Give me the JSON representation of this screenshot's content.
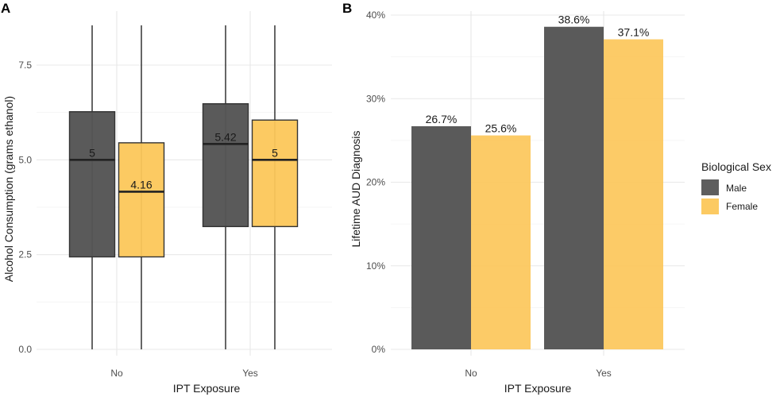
{
  "colors": {
    "male": "#555555",
    "female": "#fcc75a",
    "outline": "#333333"
  },
  "legend": {
    "title": "Biological Sex",
    "items": [
      {
        "label": "Male",
        "color": "#555555"
      },
      {
        "label": "Female",
        "color": "#fcc75a"
      }
    ]
  },
  "chart_data": [
    {
      "panel": "A",
      "type": "box",
      "title": "",
      "xlabel": "IPT Exposure",
      "ylabel": "Alcohol Consumption (grams ethanol)",
      "ylim": [
        0,
        8.6
      ],
      "yticks": [
        0,
        2.5,
        5,
        7.5
      ],
      "ytick_labels": [
        "0.0",
        "2.5",
        "5.0",
        "7.5"
      ],
      "categories": [
        "No",
        "Yes"
      ],
      "series": [
        {
          "name": "Male",
          "boxes": [
            {
              "category": "No",
              "min": 0,
              "q1": 2.44,
              "median": 5.0,
              "q3": 6.27,
              "max": 8.55,
              "label": "5"
            },
            {
              "category": "Yes",
              "min": 0,
              "q1": 3.24,
              "median": 5.42,
              "q3": 6.48,
              "max": 8.55,
              "label": "5.42"
            }
          ]
        },
        {
          "name": "Female",
          "boxes": [
            {
              "category": "No",
              "min": 0,
              "q1": 2.44,
              "median": 4.16,
              "q3": 5.45,
              "max": 8.55,
              "label": "4.16"
            },
            {
              "category": "Yes",
              "min": 0,
              "q1": 3.24,
              "median": 5.0,
              "q3": 6.05,
              "max": 8.55,
              "label": "5"
            }
          ]
        }
      ]
    },
    {
      "panel": "B",
      "type": "bar",
      "title": "",
      "xlabel": "IPT Exposure",
      "ylabel": "Lifetime AUD Diagnosis",
      "ylim": [
        0,
        40
      ],
      "yticks": [
        0,
        10,
        20,
        30,
        40
      ],
      "ytick_labels": [
        "0%",
        "10%",
        "20%",
        "30%",
        "40%"
      ],
      "categories": [
        "No",
        "Yes"
      ],
      "series": [
        {
          "name": "Male",
          "values": [
            26.7,
            38.6
          ],
          "labels": [
            "26.7%",
            "38.6%"
          ]
        },
        {
          "name": "Female",
          "values": [
            25.6,
            37.1
          ],
          "labels": [
            "25.6%",
            "37.1%"
          ]
        }
      ]
    }
  ]
}
